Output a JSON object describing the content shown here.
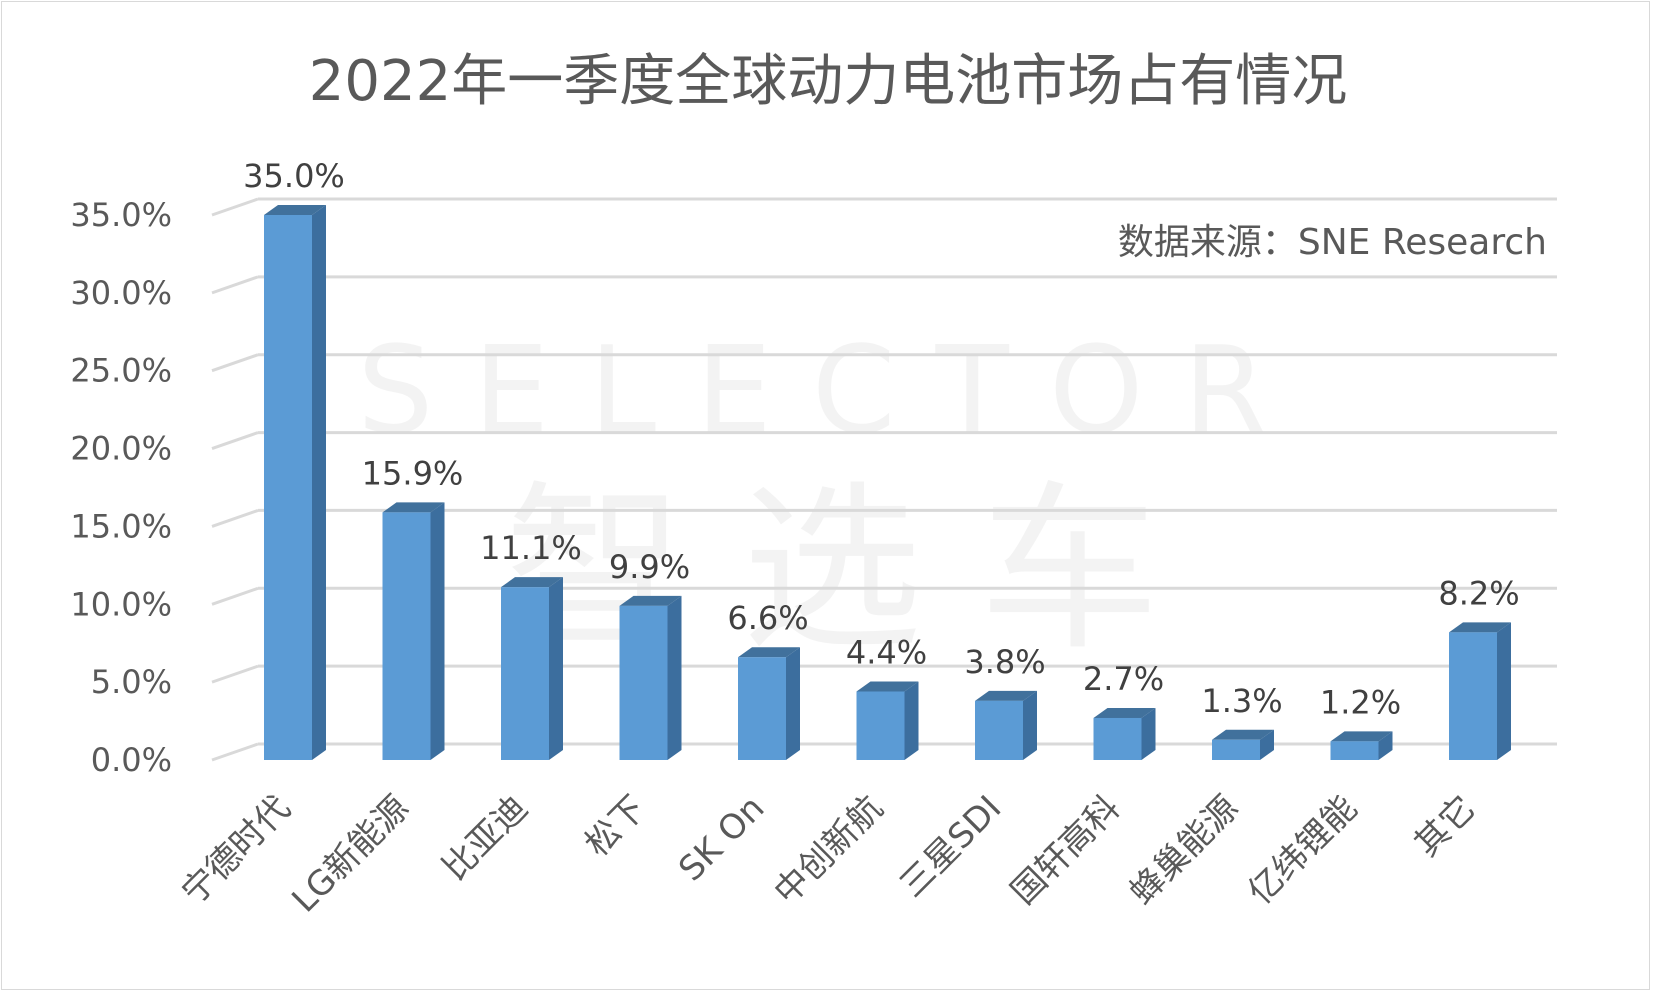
{
  "chart_data": {
    "type": "bar",
    "title": "2022年一季度全球动力电池市场占有情况",
    "source_note": "数据来源：SNE Research",
    "categories": [
      "宁德时代",
      "LG新能源",
      "比亚迪",
      "松下",
      "SK On",
      "中创新航",
      "三星SDI",
      "国轩高科",
      "蜂巢能源",
      "亿纬锂能",
      "其它"
    ],
    "values": [
      35.0,
      15.9,
      11.1,
      9.9,
      6.6,
      4.4,
      3.8,
      2.7,
      1.3,
      1.2,
      8.2
    ],
    "data_labels": [
      "35.0%",
      "15.9%",
      "11.1%",
      "9.9%",
      "6.6%",
      "4.4%",
      "3.8%",
      "2.7%",
      "1.3%",
      "1.2%",
      "8.2%"
    ],
    "y_ticks": [
      "0.0%",
      "5.0%",
      "10.0%",
      "15.0%",
      "20.0%",
      "25.0%",
      "30.0%",
      "35.0%"
    ],
    "ylim": [
      0,
      35
    ],
    "xlabel": "",
    "ylabel": "",
    "grid": true,
    "legend": "none",
    "style": "3d-column",
    "colors": {
      "bar_front": "#5b9bd5",
      "bar_side": "#3c6e9e",
      "bar_top": "#41719c",
      "grid": "#d9d9d9",
      "text": "#595959"
    }
  },
  "watermark": {
    "top": "SELECTOR",
    "bottom": "智 选 车"
  }
}
